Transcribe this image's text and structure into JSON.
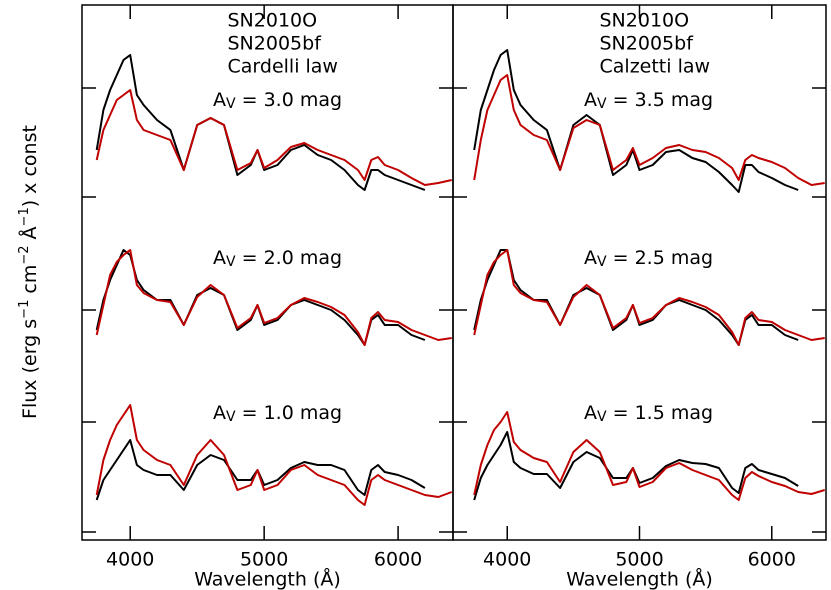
{
  "chart_data": [
    {
      "type": "line",
      "xlabel": "Wavelength (Å)",
      "ylabel": [
        "Flux (erg s",
        "−1",
        " cm",
        "−2",
        " Å",
        "−1",
        ") x const"
      ],
      "law": "Cardelli law",
      "x": [
        3750,
        3800,
        3850,
        3900,
        3950,
        4000,
        4050,
        4100,
        4200,
        4300,
        4400,
        4500,
        4600,
        4700,
        4800,
        4900,
        4950,
        5000,
        5100,
        5200,
        5300,
        5400,
        5500,
        5600,
        5700,
        5750,
        5800,
        5850,
        5900,
        6000,
        6100,
        6200,
        6300,
        6400
      ],
      "xlim": [
        3640,
        6410
      ],
      "xticks": [
        4000,
        5000,
        6000
      ],
      "ylim": [
        0,
        535
      ],
      "yticks": [
        8,
        118,
        230,
        343,
        452
      ],
      "series": [
        {
          "name": "SN2010O",
          "color": "#000000"
        },
        {
          "name": "SN2005bf",
          "color": "#c00000"
        }
      ],
      "groups": [
        {
          "annotation": {
            "main": "A",
            "sub": "V",
            "rest": " = 3.0 mag"
          },
          "values": [
            [
              390,
              430,
              450,
              465,
              480,
              485,
              445,
              435,
              420,
              410,
              370,
              415,
              422,
              415,
              365,
              375,
              390,
              370,
              375,
              390,
              395,
              385,
              380,
              370,
              355,
              350,
              370,
              370,
              365,
              360,
              355,
              350,
              null,
              null
            ],
            [
              380,
              410,
              425,
              440,
              445,
              450,
              420,
              410,
              405,
              400,
              370,
              415,
              422,
              415,
              370,
              377,
              390,
              372,
              380,
              393,
              397,
              390,
              385,
              380,
              370,
              360,
              380,
              383,
              375,
              370,
              362,
              355,
              357,
              360
            ]
          ]
        },
        {
          "annotation": {
            "main": "A",
            "sub": "V",
            "rest": " = 2.0 mag"
          },
          "values": [
            [
              210,
              240,
              260,
              275,
              290,
              285,
              260,
              250,
              240,
              240,
              215,
              245,
              252,
              245,
              210,
              220,
              235,
              215,
              220,
              235,
              240,
              235,
              230,
              220,
              205,
              195,
              220,
              225,
              215,
              215,
              205,
              200,
              null,
              null
            ],
            [
              205,
              235,
              265,
              278,
              285,
              290,
              255,
              247,
              240,
              238,
              215,
              243,
              255,
              245,
              212,
              222,
              235,
              217,
              222,
              235,
              242,
              238,
              233,
              225,
              208,
              195,
              222,
              228,
              220,
              218,
              210,
              205,
              200,
              202
            ]
          ]
        },
        {
          "annotation": {
            "main": "A",
            "sub": "V",
            "rest": " = 1.0 mag"
          },
          "values": [
            [
              40,
              60,
              70,
              80,
              90,
              100,
              75,
              70,
              65,
              65,
              50,
              75,
              85,
              80,
              60,
              60,
              70,
              55,
              60,
              72,
              78,
              75,
              75,
              70,
              50,
              45,
              70,
              75,
              68,
              65,
              60,
              52,
              null,
              null
            ],
            [
              45,
              80,
              100,
              115,
              125,
              135,
              100,
              90,
              80,
              75,
              55,
              85,
              100,
              85,
              50,
              55,
              70,
              50,
              55,
              70,
              75,
              65,
              60,
              55,
              40,
              35,
              60,
              65,
              60,
              55,
              50,
              45,
              43,
              48
            ]
          ]
        }
      ]
    },
    {
      "type": "line",
      "xlabel": "Wavelength (Å)",
      "law": "Calzetti law",
      "x": [
        3750,
        3800,
        3850,
        3900,
        3950,
        4000,
        4050,
        4100,
        4200,
        4300,
        4400,
        4500,
        4600,
        4700,
        4800,
        4900,
        4950,
        5000,
        5100,
        5200,
        5300,
        5400,
        5500,
        5600,
        5700,
        5750,
        5800,
        5850,
        5900,
        6000,
        6100,
        6200,
        6300,
        6400
      ],
      "xlim": [
        3590,
        6410
      ],
      "xticks": [
        4000,
        5000,
        6000
      ],
      "ylim": [
        0,
        535
      ],
      "yticks": [
        8,
        118,
        230,
        343,
        452
      ],
      "series": [
        {
          "name": "SN2010O",
          "color": "#000000"
        },
        {
          "name": "SN2005bf",
          "color": "#c00000"
        }
      ],
      "groups": [
        {
          "annotation": {
            "main": "A",
            "sub": "V",
            "rest": " = 3.5 mag"
          },
          "values": [
            [
              390,
              430,
              450,
              470,
              485,
              490,
              450,
              435,
              420,
              410,
              370,
              415,
              425,
              415,
              365,
              375,
              390,
              370,
              375,
              388,
              390,
              382,
              378,
              368,
              355,
              348,
              375,
              375,
              368,
              362,
              355,
              350,
              null,
              null
            ],
            [
              360,
              400,
              430,
              445,
              460,
              465,
              430,
              415,
              405,
              400,
              370,
              412,
              420,
              415,
              370,
              380,
              392,
              375,
              382,
              392,
              395,
              390,
              388,
              382,
              372,
              360,
              380,
              385,
              382,
              378,
              372,
              362,
              355,
              357
            ]
          ]
        },
        {
          "annotation": {
            "main": "A",
            "sub": "V",
            "rest": " = 2.5 mag"
          },
          "values": [
            [
              210,
              240,
              260,
              275,
              290,
              290,
              260,
              250,
              240,
              240,
              215,
              245,
              252,
              245,
              210,
              220,
              235,
              215,
              220,
              235,
              240,
              235,
              230,
              220,
              205,
              195,
              220,
              225,
              215,
              215,
              205,
              200,
              null,
              null
            ],
            [
              205,
              235,
              265,
              278,
              285,
              290,
              255,
              247,
              240,
              238,
              215,
              243,
              255,
              245,
              212,
              222,
              235,
              217,
              222,
              235,
              242,
              238,
              233,
              225,
              208,
              195,
              222,
              228,
              220,
              218,
              210,
              205,
              200,
              202
            ]
          ]
        },
        {
          "annotation": {
            "main": "A",
            "sub": "V",
            "rest": " = 1.5 mag"
          },
          "values": [
            [
              40,
              62,
              75,
              85,
              95,
              108,
              78,
              72,
              66,
              66,
              52,
              78,
              88,
              82,
              62,
              62,
              72,
              57,
              62,
              74,
              80,
              77,
              76,
              72,
              52,
              47,
              72,
              76,
              70,
              66,
              62,
              54,
              null,
              null
            ],
            [
              45,
              75,
              95,
              110,
              118,
              128,
              98,
              90,
              82,
              78,
              58,
              88,
              100,
              88,
              55,
              58,
              72,
              53,
              58,
              72,
              77,
              70,
              65,
              60,
              45,
              40,
              62,
              68,
              64,
              58,
              54,
              48,
              46,
              50
            ]
          ]
        }
      ]
    }
  ]
}
